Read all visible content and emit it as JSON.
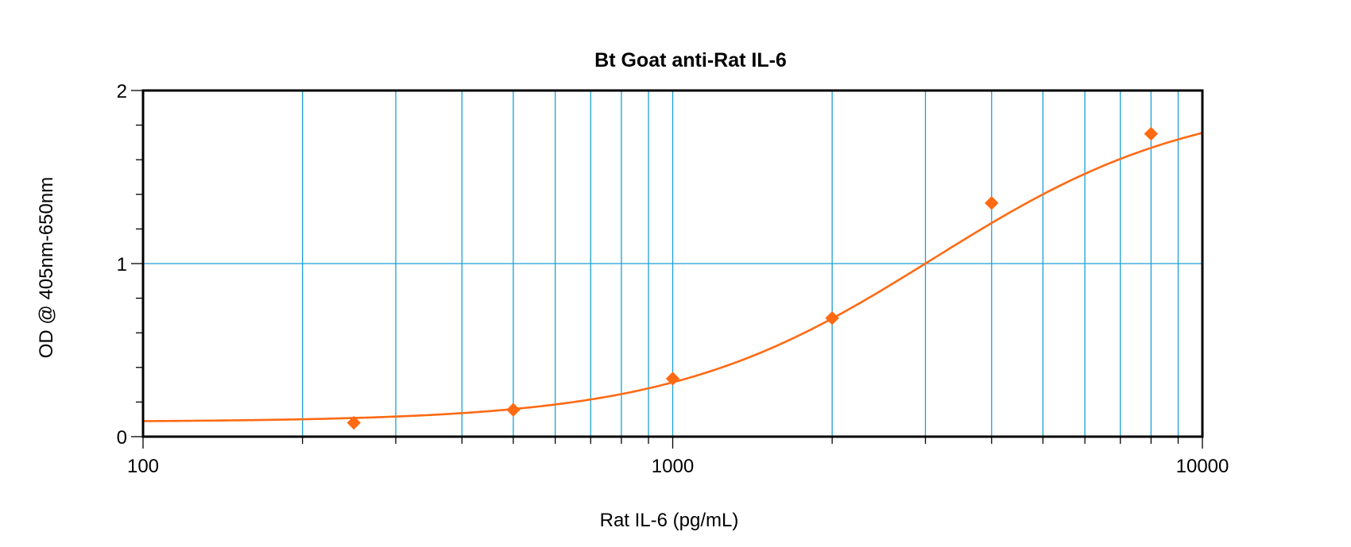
{
  "chart_data": {
    "type": "scatter",
    "title": "Bt Goat anti-Rat IL-6",
    "xlabel": "Rat IL-6 (pg/mL)",
    "ylabel": "OD @ 405nm-650nm",
    "xscale": "log",
    "xlim": [
      100,
      10000
    ],
    "ylim": [
      0,
      2
    ],
    "x_ticks": [
      "100",
      "1000",
      "10000"
    ],
    "y_ticks": [
      "0",
      "1",
      "2"
    ],
    "grid": true,
    "colors": {
      "series": "#ff6a13",
      "grid": "#1aa0d6",
      "axis": "#000000"
    },
    "series": [
      {
        "marker": "diamond",
        "fit": "4-parameter logistic curve",
        "x": [
          250,
          500,
          1000,
          2000,
          4000,
          8000
        ],
        "y": [
          0.08,
          0.155,
          0.335,
          0.685,
          1.35,
          1.75
        ]
      }
    ]
  }
}
